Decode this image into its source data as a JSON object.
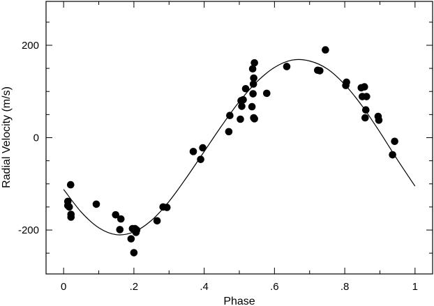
{
  "chart_data": {
    "type": "scatter",
    "xlabel": "Phase",
    "ylabel": "Radial Velocity (m/s)",
    "xlim": [
      -0.05,
      1.05
    ],
    "ylim": [
      -295,
      295
    ],
    "grid": false,
    "legend": "none",
    "x_ticks": [
      {
        "value": 0,
        "label": "0"
      },
      {
        "value": 0.2,
        "label": ".2"
      },
      {
        "value": 0.4,
        "label": ".4"
      },
      {
        "value": 0.6,
        "label": ".6"
      },
      {
        "value": 0.8,
        "label": ".8"
      },
      {
        "value": 1,
        "label": "1"
      }
    ],
    "y_ticks": [
      {
        "value": -200,
        "label": "-200"
      },
      {
        "value": 0,
        "label": "0"
      },
      {
        "value": 200,
        "label": "200"
      }
    ],
    "series": [
      {
        "marker": "filled-circle",
        "color": "#000000",
        "points": [
          [
            0.012,
            -138
          ],
          [
            0.012,
            -147
          ],
          [
            0.016,
            -150
          ],
          [
            0.02,
            -102
          ],
          [
            0.021,
            -166
          ],
          [
            0.021,
            -172
          ],
          [
            0.093,
            -144
          ],
          [
            0.148,
            -167
          ],
          [
            0.16,
            -199
          ],
          [
            0.163,
            -176
          ],
          [
            0.192,
            -219
          ],
          [
            0.196,
            -197
          ],
          [
            0.2,
            -249
          ],
          [
            0.203,
            -197
          ],
          [
            0.206,
            -205
          ],
          [
            0.208,
            -200
          ],
          [
            0.266,
            -180
          ],
          [
            0.283,
            -150
          ],
          [
            0.294,
            -151
          ],
          [
            0.369,
            -30
          ],
          [
            0.39,
            -47
          ],
          [
            0.396,
            -22
          ],
          [
            0.47,
            13
          ],
          [
            0.473,
            48
          ],
          [
            0.503,
            40
          ],
          [
            0.505,
            80
          ],
          [
            0.507,
            68
          ],
          [
            0.511,
            82
          ],
          [
            0.518,
            106
          ],
          [
            0.536,
            67
          ],
          [
            0.538,
            149
          ],
          [
            0.539,
            95
          ],
          [
            0.54,
            116
          ],
          [
            0.541,
            43
          ],
          [
            0.541,
            129
          ],
          [
            0.543,
            41
          ],
          [
            0.543,
            162
          ],
          [
            0.578,
            96
          ],
          [
            0.635,
            154
          ],
          [
            0.723,
            146
          ],
          [
            0.729,
            145
          ],
          [
            0.745,
            190
          ],
          [
            0.803,
            113
          ],
          [
            0.805,
            120
          ],
          [
            0.847,
            108
          ],
          [
            0.85,
            89
          ],
          [
            0.856,
            110
          ],
          [
            0.858,
            43
          ],
          [
            0.86,
            60
          ],
          [
            0.862,
            89
          ],
          [
            0.895,
            46
          ],
          [
            0.897,
            38
          ],
          [
            0.936,
            -37
          ],
          [
            0.942,
            -8
          ]
        ]
      }
    ],
    "model_curve": {
      "type": "line",
      "color": "#000000",
      "x": [
        0.0,
        0.05,
        0.1,
        0.15,
        0.2,
        0.25,
        0.3,
        0.35,
        0.4,
        0.45,
        0.5,
        0.55,
        0.6,
        0.65,
        0.7,
        0.75,
        0.8,
        0.85,
        0.9,
        0.95,
        1.0
      ],
      "y": [
        -112,
        -161,
        -195,
        -210,
        -204,
        -179,
        -138,
        -86,
        -30,
        26,
        78,
        121,
        152,
        168,
        166,
        149,
        115,
        68,
        12,
        -48,
        -105
      ]
    }
  }
}
